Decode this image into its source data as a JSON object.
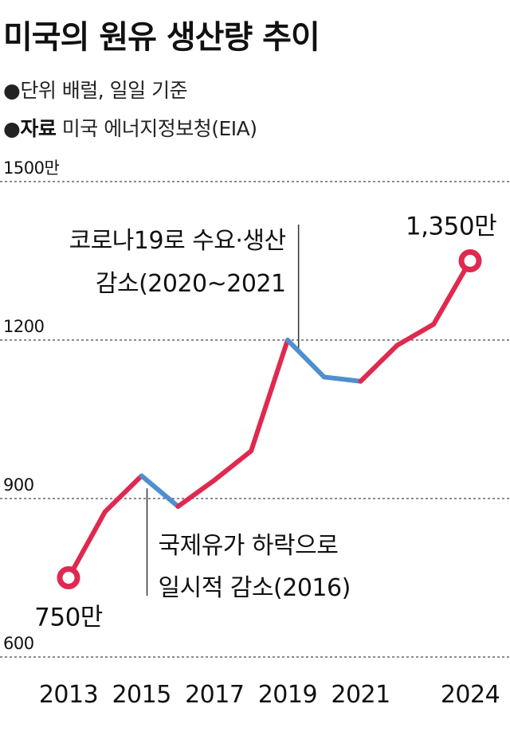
{
  "header": {
    "title": "미국의 원유 생산량 추이",
    "unit_bullet": "●",
    "unit_text": "단위  배럴, 일일 기준",
    "source_bullet": "●",
    "source_label": "자료",
    "source_text": "미국 에너지정보청(EIA)"
  },
  "colors": {
    "increase": "#e0294f",
    "decrease": "#4f8fd0",
    "grid": "#666666",
    "marker_fill": "#ffffff"
  },
  "chart_data": {
    "type": "line",
    "title": "미국의 원유 생산량 추이",
    "unit": "만 배럴/일",
    "ylim": [
      600,
      1500
    ],
    "yticks": [
      {
        "value": 1500,
        "label": "1500만"
      },
      {
        "value": 1200,
        "label": "1200"
      },
      {
        "value": 900,
        "label": "900"
      },
      {
        "value": 600,
        "label": "600"
      }
    ],
    "x": [
      2013,
      2014,
      2015,
      2016,
      2017,
      2018,
      2019,
      2020,
      2021,
      2022,
      2023,
      2024
    ],
    "y": [
      750,
      875,
      943,
      885,
      935,
      990,
      1200,
      1130,
      1122,
      1190,
      1230,
      1350
    ],
    "xtick_labels": [
      "2013",
      "2015",
      "2017",
      "2019",
      "2021",
      "2024"
    ],
    "decline_segments": [
      [
        2015,
        2016
      ],
      [
        2019,
        2021
      ]
    ],
    "grid": true,
    "endpoint_labels": [
      {
        "x": 2013,
        "text": "750만"
      },
      {
        "x": 2024,
        "text": "1,350만"
      }
    ],
    "annotations": [
      {
        "x": 2015.15,
        "lines": [
          "국제유가 하락으로",
          "일시적 감소(2016)"
        ]
      },
      {
        "x": 2019.3,
        "lines": [
          "코로나19로 수요·생산",
          "감소(2020~2021"
        ]
      }
    ]
  }
}
